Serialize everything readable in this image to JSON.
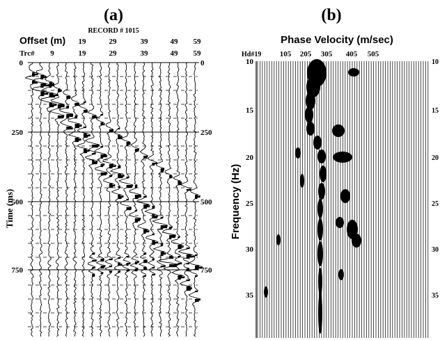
{
  "panel_a": {
    "label": "(a)",
    "record": "RECORD # 1015",
    "offset_label": "Offset (m)",
    "trc_label": "Trc#",
    "offset_ticks": [
      "19",
      "29",
      "39",
      "49",
      "59"
    ],
    "trc_ticks": [
      "9",
      "19",
      "29",
      "39",
      "49",
      "59"
    ],
    "time_label": "Time (ms)",
    "time_ticks": [
      "0",
      "250",
      "500",
      "750"
    ],
    "right_time_ticks": [
      "0",
      "250",
      "500",
      "750"
    ]
  },
  "panel_b": {
    "label": "(b)",
    "title": "Phase Velocity (m/sec)",
    "hd_label": "Hd#19",
    "velocity_ticks": [
      "105",
      "205",
      "305",
      "405",
      "505"
    ],
    "freq_label": "Frequency (Hz)",
    "freq_ticks": [
      "10",
      "15",
      "20",
      "25",
      "30",
      "35"
    ],
    "right_freq_ticks": [
      "10",
      "15",
      "20",
      "25",
      "30",
      "35"
    ]
  }
}
